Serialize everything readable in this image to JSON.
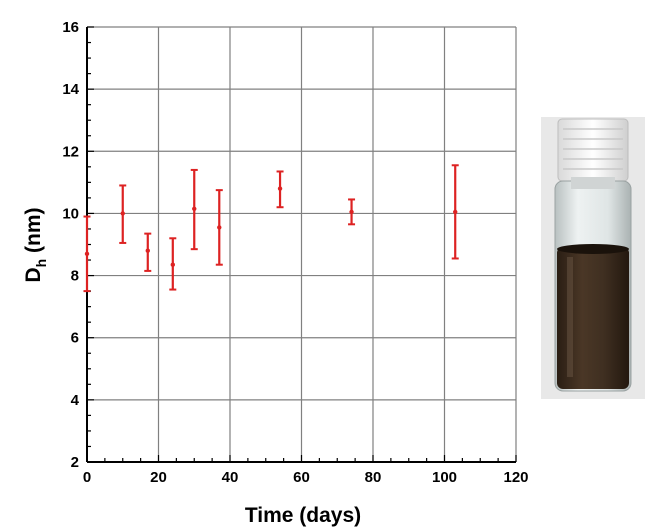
{
  "chart_data": {
    "type": "scatter",
    "xlabel": "Time (days)",
    "ylabel_main": "D",
    "ylabel_sub": "h",
    "ylabel_unit": " (nm)",
    "xlim": [
      0,
      120
    ],
    "ylim": [
      2,
      16
    ],
    "x_ticks": [
      0,
      20,
      40,
      60,
      80,
      100,
      120
    ],
    "y_ticks": [
      2,
      4,
      6,
      8,
      10,
      12,
      14,
      16
    ],
    "grid": true,
    "error_bars": true,
    "points": [
      {
        "x": 0,
        "y": 8.7,
        "low": 7.5,
        "high": 9.9
      },
      {
        "x": 10,
        "y": 10.0,
        "low": 9.05,
        "high": 10.9
      },
      {
        "x": 17,
        "y": 8.8,
        "low": 8.15,
        "high": 9.35
      },
      {
        "x": 24,
        "y": 8.35,
        "low": 7.55,
        "high": 9.2
      },
      {
        "x": 30,
        "y": 10.15,
        "low": 8.85,
        "high": 11.4
      },
      {
        "x": 37,
        "y": 9.55,
        "low": 8.35,
        "high": 10.75
      },
      {
        "x": 54,
        "y": 10.8,
        "low": 10.2,
        "high": 11.35
      },
      {
        "x": 74,
        "y": 10.05,
        "low": 9.65,
        "high": 10.45
      },
      {
        "x": 103,
        "y": 10.05,
        "low": 8.55,
        "high": 11.55
      }
    ],
    "colors": {
      "marker": "#dd2222",
      "grid": "#808080",
      "axis": "#000000"
    }
  },
  "image": {
    "subject": "vial-photo"
  }
}
